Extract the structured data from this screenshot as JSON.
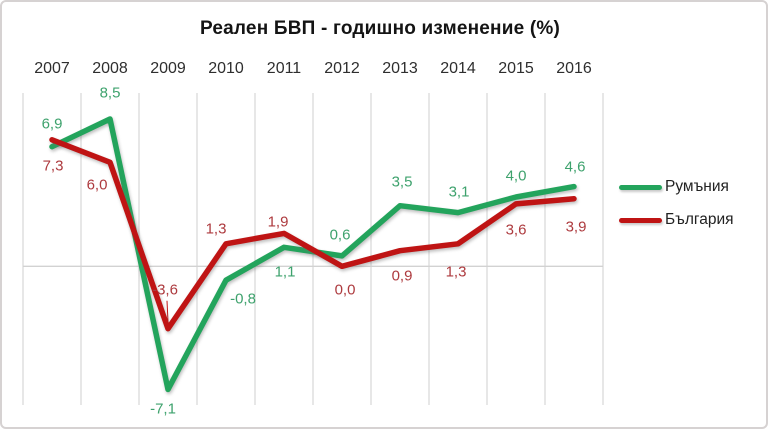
{
  "title": "Реален БВП - годишно изменение (%)",
  "chart_data": {
    "type": "line",
    "title": "Реален БВП - годишно изменение (%)",
    "categories": [
      "2007",
      "2008",
      "2009",
      "2010",
      "2011",
      "2012",
      "2013",
      "2014",
      "2015",
      "2016"
    ],
    "series": [
      {
        "name": "Румъния",
        "line_color": "#23a45c",
        "label_color": "#3ea26d",
        "values": [
          6.9,
          8.5,
          -7.1,
          -0.8,
          1.1,
          0.6,
          3.5,
          3.1,
          4.0,
          4.6
        ],
        "labels": [
          "6,9",
          "8,5",
          "-7,1",
          "-0,8",
          "1,1",
          "0,6",
          "3,5",
          "3,1",
          "4,0",
          "4,6"
        ],
        "label_offsets": [
          [
            0,
            -23
          ],
          [
            0,
            -26
          ],
          [
            -5,
            20
          ],
          [
            17,
            19
          ],
          [
            1,
            25
          ],
          [
            -2,
            -21
          ],
          [
            2,
            -24
          ],
          [
            1,
            -21
          ],
          [
            0,
            -21
          ],
          [
            1,
            -20
          ]
        ]
      },
      {
        "name": "България",
        "line_color": "#bf1414",
        "label_color": "#ad3a3e",
        "values": [
          7.3,
          6.0,
          -3.6,
          1.3,
          1.9,
          0.0,
          0.9,
          1.3,
          3.6,
          3.9
        ],
        "labels": [
          "7,3",
          "6,0",
          "-3,6",
          "1,3",
          "1,9",
          "0,0",
          "0,9",
          "1,3",
          "3,6",
          "3,9"
        ],
        "label_offsets": [
          [
            1,
            26
          ],
          [
            -13,
            23
          ],
          [
            -3,
            -39
          ],
          [
            -10,
            -15
          ],
          [
            -6,
            -11
          ],
          [
            3,
            24
          ],
          [
            2,
            25
          ],
          [
            -2,
            28
          ],
          [
            0,
            26
          ],
          [
            2,
            28
          ]
        ]
      }
    ],
    "ylim": [
      -8,
      10
    ],
    "grid": "vertical category gridlines only",
    "zero_axis_line": true,
    "gridline_color": "#dadada",
    "decimal_separator": ",",
    "legend_position": "right",
    "leader_line": {
      "series_index": 1,
      "point_index": 2,
      "note": "thin red line from -3,6 label down to point"
    }
  },
  "legend": {
    "items": [
      {
        "label": "Румъния",
        "color": "#23a45c"
      },
      {
        "label": "България",
        "color": "#bf1414"
      }
    ]
  }
}
